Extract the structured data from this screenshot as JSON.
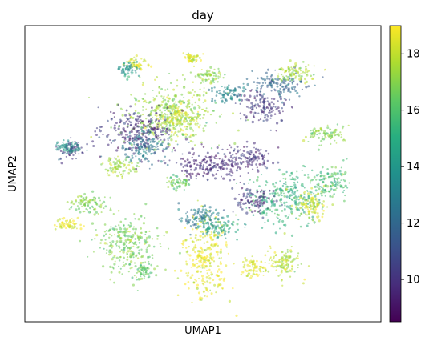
{
  "chart_data": {
    "type": "scatter",
    "title": "day",
    "xlabel": "UMAP1",
    "ylabel": "UMAP2",
    "x_ticks": false,
    "y_ticks": false,
    "grid": false,
    "colorbar": {
      "colormap": "viridis",
      "min": 8.5,
      "max": 19.0,
      "ticks": [
        10,
        12,
        14,
        16,
        18
      ],
      "tick_labels": [
        "10",
        "12",
        "14",
        "16",
        "18"
      ],
      "position": "right"
    },
    "xlim": [
      0,
      100
    ],
    "ylim": [
      0,
      100
    ],
    "clusters": [
      {
        "label": "upper-center large blob",
        "cx": 41,
        "cy": 70,
        "rx": 12,
        "ry": 9,
        "day": 17.2
      },
      {
        "label": "upper-center core",
        "cx": 43,
        "cy": 69,
        "rx": 5,
        "ry": 4,
        "day": 18.3
      },
      {
        "label": "left-center mass",
        "cx": 32,
        "cy": 64,
        "rx": 9,
        "ry": 7,
        "day": 10.0
      },
      {
        "label": "left-center mixed",
        "cx": 33,
        "cy": 59,
        "rx": 7,
        "ry": 5,
        "day": 12.5
      },
      {
        "label": "center hub",
        "cx": 52,
        "cy": 53,
        "rx": 9,
        "ry": 5,
        "day": 9.7
      },
      {
        "label": "hub right",
        "cx": 63,
        "cy": 55,
        "rx": 6,
        "ry": 4,
        "day": 10.0
      },
      {
        "label": "left isolated cluster",
        "cx": 13,
        "cy": 58,
        "rx": 3,
        "ry": 3,
        "day": 10.5
      },
      {
        "label": "left isolated edge",
        "cx": 12,
        "cy": 59,
        "rx": 3,
        "ry": 2,
        "day": 14.0
      },
      {
        "label": "lower-left large blob",
        "cx": 29,
        "cy": 26,
        "rx": 8,
        "ry": 9,
        "day": 16.8
      },
      {
        "label": "lower-left tail",
        "cx": 33,
        "cy": 17,
        "rx": 2,
        "ry": 3,
        "day": 16.4
      },
      {
        "label": "lower-center column",
        "cx": 51,
        "cy": 22,
        "rx": 6,
        "ry": 12,
        "day": 18.6
      },
      {
        "label": "lower-center column top",
        "cx": 49,
        "cy": 35,
        "rx": 5,
        "ry": 4,
        "day": 12.8
      },
      {
        "label": "lower-center teal",
        "cx": 55,
        "cy": 32,
        "rx": 5,
        "ry": 3,
        "day": 14.5
      },
      {
        "label": "right fan",
        "cx": 74,
        "cy": 42,
        "rx": 10,
        "ry": 8,
        "day": 15.3
      },
      {
        "label": "right fan purple",
        "cx": 65,
        "cy": 41,
        "rx": 5,
        "ry": 4,
        "day": 10.2
      },
      {
        "label": "right fan yellow",
        "cx": 81,
        "cy": 39,
        "rx": 4,
        "ry": 5,
        "day": 18.2
      },
      {
        "label": "far right arms",
        "cx": 86,
        "cy": 47,
        "rx": 4,
        "ry": 5,
        "day": 15.8
      },
      {
        "label": "lower right tail",
        "cx": 72,
        "cy": 20,
        "rx": 5,
        "ry": 5,
        "day": 17.8
      },
      {
        "label": "lower right tail 2",
        "cx": 64,
        "cy": 18,
        "rx": 3,
        "ry": 3,
        "day": 18.4
      },
      {
        "label": "upper-right purple",
        "cx": 67,
        "cy": 73,
        "rx": 6,
        "ry": 5,
        "day": 10.2
      },
      {
        "label": "upper-right branches",
        "cx": 71,
        "cy": 80,
        "rx": 7,
        "ry": 4,
        "day": 12.0
      },
      {
        "label": "upper-right yellow tips",
        "cx": 76,
        "cy": 84,
        "rx": 5,
        "ry": 3,
        "day": 17.5
      },
      {
        "label": "top-left small yellow",
        "cx": 31,
        "cy": 87,
        "rx": 3,
        "ry": 2,
        "day": 18.5
      },
      {
        "label": "top-left small teal",
        "cx": 29,
        "cy": 85,
        "rx": 3,
        "ry": 2,
        "day": 14.0
      },
      {
        "label": "top small group",
        "cx": 47,
        "cy": 89,
        "rx": 2,
        "ry": 2,
        "day": 18.2
      },
      {
        "label": "top middle arms",
        "cx": 52,
        "cy": 83,
        "rx": 4,
        "ry": 2,
        "day": 17.0
      },
      {
        "label": "left tail lower",
        "cx": 18,
        "cy": 40,
        "rx": 5,
        "ry": 3,
        "day": 16.8
      },
      {
        "label": "left tail lower yellow",
        "cx": 12,
        "cy": 33,
        "rx": 3,
        "ry": 2,
        "day": 18.7
      },
      {
        "label": "left side small",
        "cx": 27,
        "cy": 52,
        "rx": 4,
        "ry": 3,
        "day": 17.5
      },
      {
        "label": "center small group",
        "cx": 43,
        "cy": 47,
        "rx": 3,
        "ry": 2,
        "day": 16.5
      },
      {
        "label": "right side mid",
        "cx": 84,
        "cy": 63,
        "rx": 5,
        "ry": 3,
        "day": 17.0
      },
      {
        "label": "upper center branch",
        "cx": 57,
        "cy": 77,
        "rx": 4,
        "ry": 3,
        "day": 13.2
      }
    ]
  }
}
